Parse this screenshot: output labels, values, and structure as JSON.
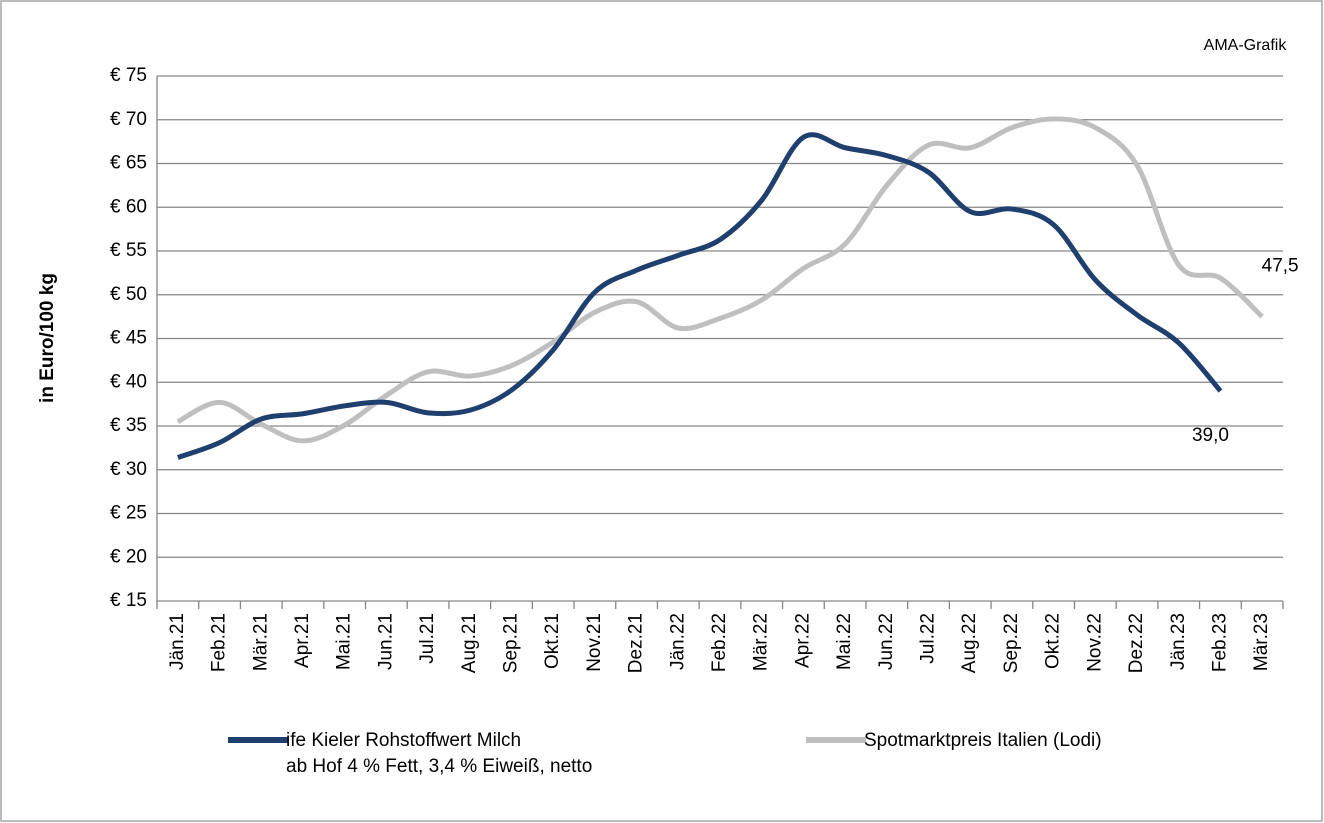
{
  "chart_data": {
    "type": "line",
    "annotation": "AMA-Grafik",
    "y_label": "in Euro/100 kg",
    "categories": [
      "Jän.21",
      "Feb.21",
      "Mär.21",
      "Apr.21",
      "Mai.21",
      "Jun.21",
      "Jul.21",
      "Aug.21",
      "Sep.21",
      "Okt.21",
      "Nov.21",
      "Dez.21",
      "Jän.22",
      "Feb.22",
      "Mär.22",
      "Apr.22",
      "Mai.22",
      "Jun.22",
      "Jul.22",
      "Aug.22",
      "Sep.22",
      "Okt.22",
      "Nov.22",
      "Dez.22",
      "Jän.23",
      "Feb.23",
      "Mär.23"
    ],
    "series": [
      {
        "name": "ife Kieler Rohstoffwert Milch\nab Hof 4 % Fett, 3,4 % Eiweiß, netto",
        "color": "#1f3f6e",
        "values": [
          31.4,
          33.1,
          35.8,
          36.4,
          37.3,
          37.7,
          36.5,
          36.8,
          39.1,
          43.7,
          50.3,
          52.8,
          54.5,
          56.3,
          60.8,
          68.0,
          66.8,
          65.9,
          64.0,
          59.5,
          59.8,
          58.0,
          51.7,
          47.7,
          44.5,
          39.0,
          null
        ],
        "value_labels": [
          null,
          null,
          null,
          null,
          null,
          null,
          null,
          null,
          null,
          null,
          null,
          null,
          null,
          null,
          null,
          null,
          null,
          null,
          null,
          null,
          null,
          null,
          null,
          null,
          null,
          "39,0",
          null
        ]
      },
      {
        "name": "Spotmarktpreis Italien (Lodi)",
        "color": "#bfbfbf",
        "values": [
          35.5,
          37.7,
          35.2,
          33.3,
          35.1,
          38.5,
          41.2,
          40.7,
          41.9,
          44.6,
          48.0,
          49.2,
          46.2,
          47.3,
          49.4,
          53.0,
          55.8,
          62.5,
          67.1,
          66.8,
          69.1,
          70.1,
          69.1,
          64.8,
          53.4,
          51.9,
          47.5
        ],
        "value_labels": [
          null,
          null,
          null,
          null,
          null,
          null,
          null,
          null,
          null,
          null,
          null,
          null,
          null,
          null,
          null,
          null,
          null,
          null,
          null,
          null,
          null,
          null,
          null,
          null,
          null,
          null,
          "47,5"
        ]
      }
    ],
    "ylim": [
      15,
      75
    ],
    "yticks": [
      {
        "value": 15,
        "label": "€ 15"
      },
      {
        "value": 20,
        "label": "€ 20"
      },
      {
        "value": 25,
        "label": "€ 25"
      },
      {
        "value": 30,
        "label": "€ 30"
      },
      {
        "value": 35,
        "label": "€ 35"
      },
      {
        "value": 40,
        "label": "€ 40"
      },
      {
        "value": 45,
        "label": "€ 45"
      },
      {
        "value": 50,
        "label": "€ 50"
      },
      {
        "value": 55,
        "label": "€ 55"
      },
      {
        "value": 60,
        "label": "€ 60"
      },
      {
        "value": 65,
        "label": "€ 65"
      },
      {
        "value": 70,
        "label": "€ 70"
      },
      {
        "value": 75,
        "label": "€ 75"
      }
    ],
    "grid": true
  }
}
